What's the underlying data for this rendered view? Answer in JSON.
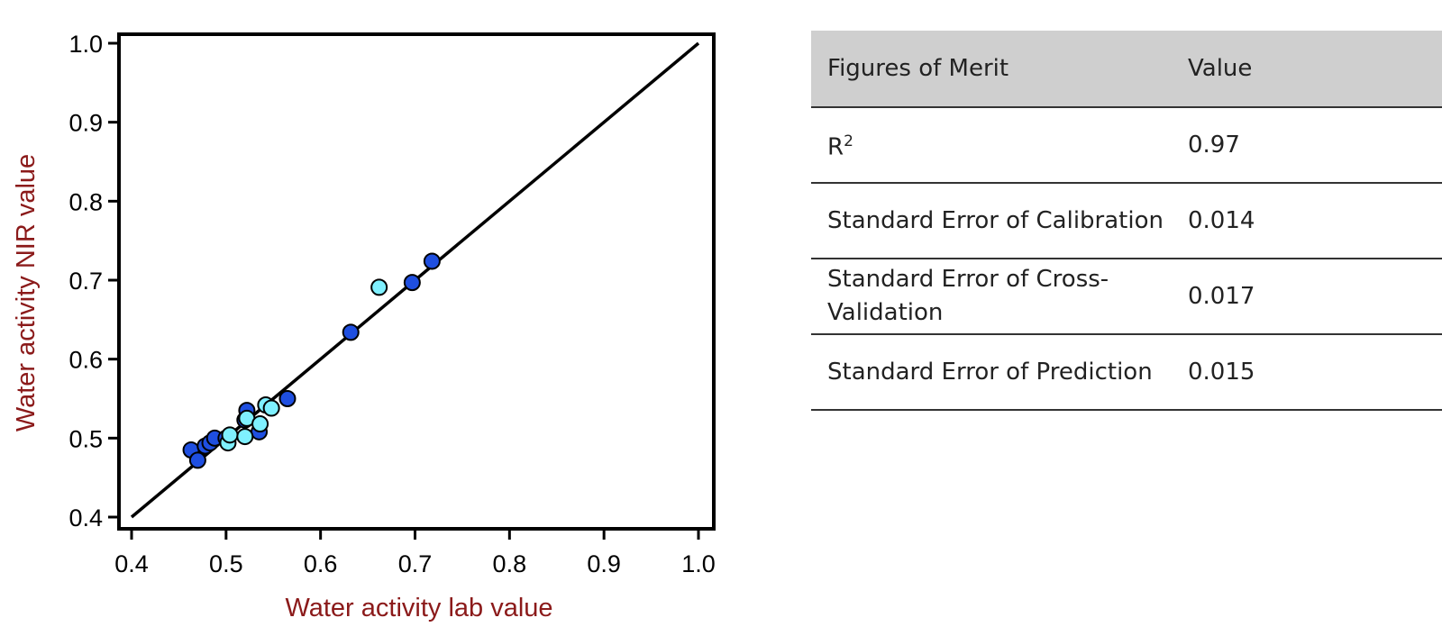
{
  "colors": {
    "axis_title": "#8b1a1a",
    "series_dark": "#1f4fe0",
    "series_light": "#7ff0ff",
    "header_bg": "#cfcfcf"
  },
  "chart_data": {
    "type": "scatter",
    "xlabel": "Water activity lab value",
    "ylabel": "Water activity NIR value",
    "xlim": [
      0.4,
      1.0
    ],
    "ylim": [
      0.4,
      1.0
    ],
    "xticks": [
      "0.4",
      "0.5",
      "0.6",
      "0.7",
      "0.8",
      "0.9",
      "1.0"
    ],
    "yticks": [
      "0.4",
      "0.5",
      "0.6",
      "0.7",
      "0.8",
      "0.9",
      "1.0"
    ],
    "grid": false,
    "reference_line": {
      "x": [
        0.4,
        1.0
      ],
      "y": [
        0.4,
        1.0
      ]
    },
    "series": [
      {
        "color": "#1f4fe0",
        "x": [
          0.463,
          0.47,
          0.478,
          0.483,
          0.488,
          0.5,
          0.52,
          0.522,
          0.535,
          0.565,
          0.632,
          0.697,
          0.718
        ],
        "y": [
          0.485,
          0.472,
          0.49,
          0.494,
          0.5,
          0.5,
          0.523,
          0.535,
          0.508,
          0.55,
          0.634,
          0.697,
          0.724
        ]
      },
      {
        "color": "#7ff0ff",
        "x": [
          0.502,
          0.504,
          0.52,
          0.522,
          0.536,
          0.542,
          0.548,
          0.662
        ],
        "y": [
          0.494,
          0.504,
          0.502,
          0.525,
          0.518,
          0.542,
          0.538,
          0.691
        ]
      }
    ]
  },
  "table": {
    "headers": [
      "Figures of Merit",
      "Value"
    ],
    "rows": [
      {
        "metric": "R",
        "metric_sup": "2",
        "value": "0.97"
      },
      {
        "metric": "Standard Error of Calibration",
        "value": "0.014"
      },
      {
        "metric": "Standard Error of Cross-Validation",
        "value": "0.017"
      },
      {
        "metric": "Standard Error of Prediction",
        "value": "0.015"
      }
    ]
  }
}
